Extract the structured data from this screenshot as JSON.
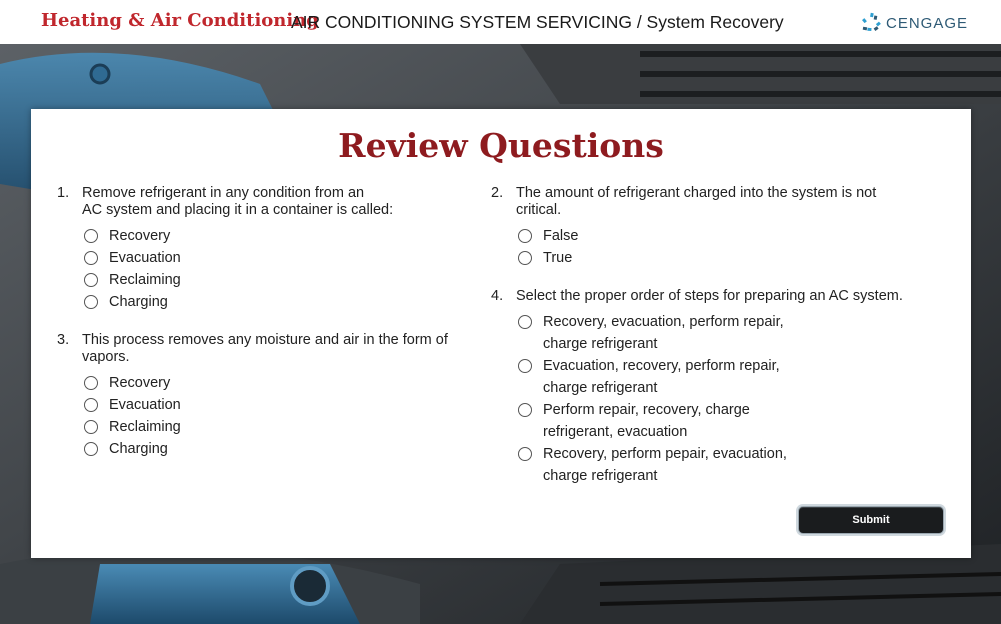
{
  "header": {
    "course_title": "Heating & Air Conditioning",
    "module_title": "AIR CONDITIONING SYSTEM SERVICING / System Recovery",
    "logo_text": "CENGAGE"
  },
  "card": {
    "title": "Review Questions",
    "questions": [
      {
        "number": "1.",
        "lines": [
          "Remove refrigerant in any condition from an",
          "AC system and placing it in a container is called:"
        ],
        "options": [
          [
            "Recovery"
          ],
          [
            "Evacuation"
          ],
          [
            "Reclaiming"
          ],
          [
            "Charging"
          ]
        ]
      },
      {
        "number": "2.",
        "lines": [
          "The amount of refrigerant charged into the system is not",
          "critical."
        ],
        "options": [
          [
            "False"
          ],
          [
            "True"
          ]
        ]
      },
      {
        "number": "3.",
        "lines": [
          "This process removes any moisture and air in the form of",
          "vapors."
        ],
        "options": [
          [
            "Recovery"
          ],
          [
            "Evacuation"
          ],
          [
            "Reclaiming"
          ],
          [
            "Charging"
          ]
        ]
      },
      {
        "number": "4.",
        "lines": [
          "Select the proper order of steps for preparing an AC system."
        ],
        "options": [
          [
            "Recovery, evacuation, perform repair,",
            "charge refrigerant"
          ],
          [
            "Evacuation, recovery, perform repair,",
            "charge refrigerant"
          ],
          [
            "Perform repair, recovery, charge",
            "refrigerant, evacuation"
          ],
          [
            "Recovery, perform pepair, evacuation,",
            "charge refrigerant"
          ]
        ]
      }
    ],
    "submit_label": "Submit"
  },
  "colors": {
    "brand_red": "#c0272d",
    "title_red": "#8e1b1f",
    "logo_blue": "#2e5a75",
    "button_dark": "#1a1c1e"
  },
  "icons": {
    "logo": "cengage-logo-icon",
    "radio": "radio-button-icon"
  }
}
